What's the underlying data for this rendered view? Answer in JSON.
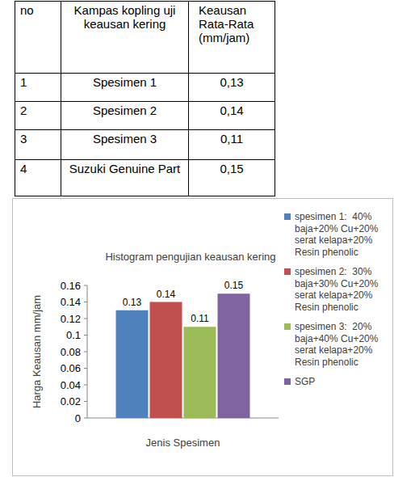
{
  "table": {
    "header": [
      "no",
      "Kampas kopling uji keausan kering",
      "Keausan Rata-Rata (mm/jam)"
    ],
    "rows": [
      [
        "1",
        "Spesimen 1",
        "0,13"
      ],
      [
        "2",
        "Spesimen  2",
        "0,14"
      ],
      [
        "3",
        "Spesimen  3",
        "0,11"
      ],
      [
        "4",
        "Suzuki Genuine Part",
        "0,15"
      ]
    ]
  },
  "chart_data": {
    "type": "bar",
    "title": "Histogram pengujian keausan kering",
    "y_label": "Harga Keausan mm/jam",
    "x_label": "Jenis Spesimen",
    "categories": [
      null
    ],
    "series": [
      {
        "name": "spesimen 1:  40% baja+20% Cu+20% serat kelapa+20% Resin phenolic",
        "color": "#4F81BD",
        "values": [
          0.13
        ]
      },
      {
        "name": "spesimen 2:  30% baja+30% Cu+20% serat kelapa+20% Resin phenolic",
        "color": "#C0504D",
        "values": [
          0.14
        ]
      },
      {
        "name": "spesimen 3:  20% baja+40% Cu+20% serat kelapa+20% Resin phenolic",
        "color": "#9BBB59",
        "values": [
          0.11
        ]
      },
      {
        "name": "SGP",
        "color": "#8064A2",
        "values": [
          0.15
        ]
      }
    ],
    "ylim": [
      0,
      0.16
    ],
    "yticks": [
      0,
      0.02,
      0.04,
      0.06,
      0.08,
      0.1,
      0.12,
      0.14,
      0.16
    ],
    "grid": false,
    "legend": "right",
    "data_labels": true
  }
}
